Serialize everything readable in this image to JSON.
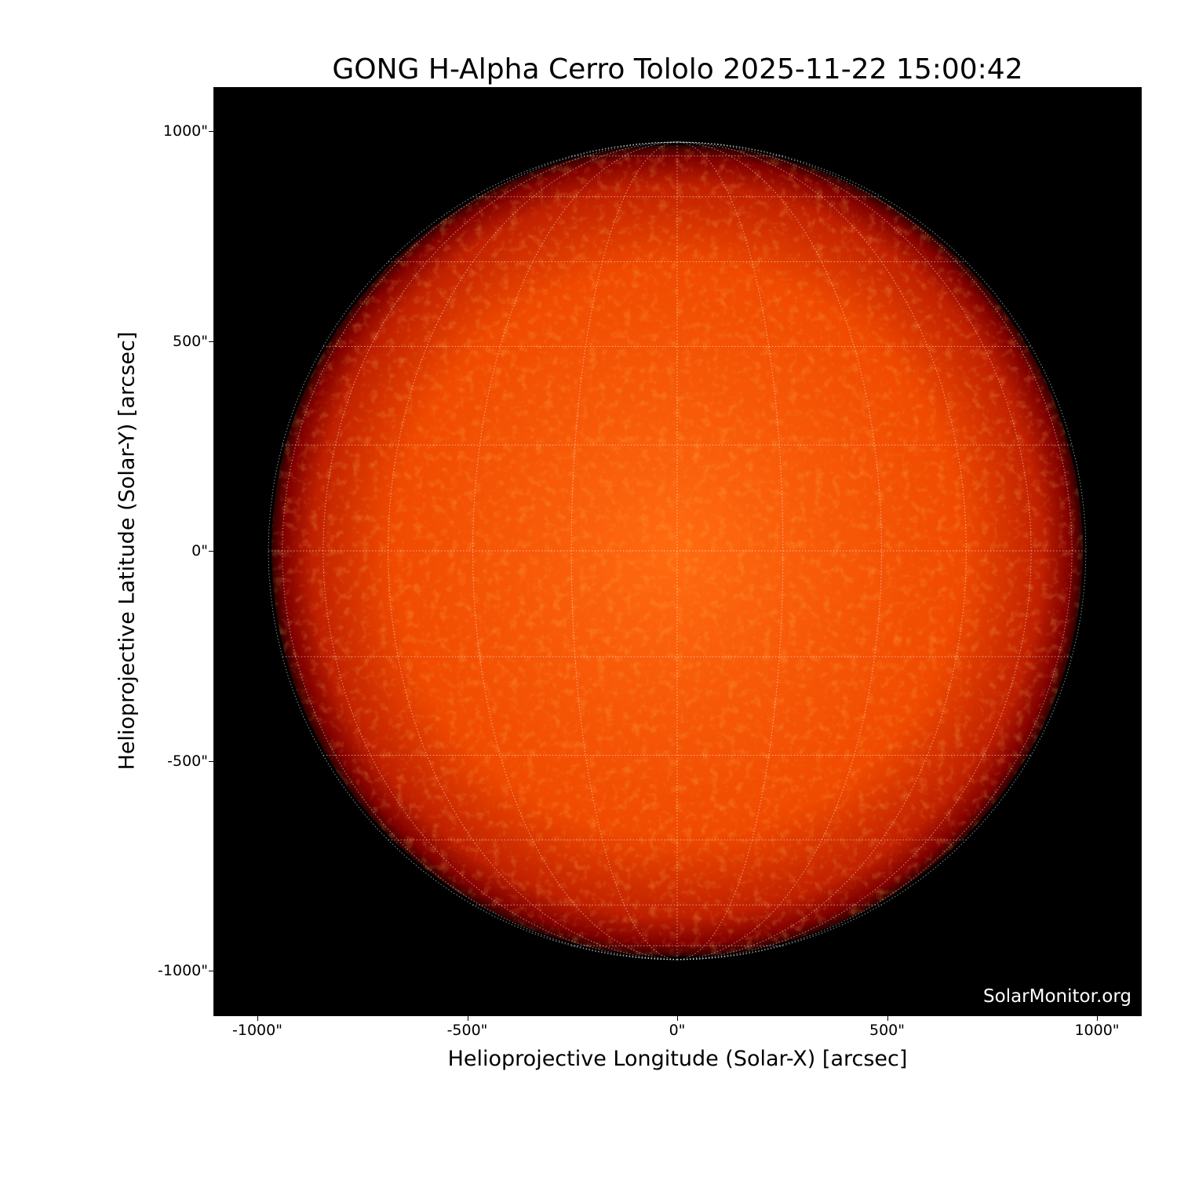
{
  "title": "GONG H-Alpha Cerro Tololo 2025-11-22 15:00:42",
  "xlabel": "Helioprojective Longitude (Solar-X) [arcsec]",
  "ylabel": "Helioprojective Latitude (Solar-Y) [arcsec]",
  "x_ticks": [
    "-1000\"",
    "-500\"",
    "0\"",
    "500\"",
    "1000\""
  ],
  "y_ticks": [
    "1000\"",
    "500\"",
    "0\"",
    "-500\"",
    "-1000\""
  ],
  "x_tick_values": [
    -1000,
    -500,
    0,
    500,
    1000
  ],
  "y_tick_values": [
    1000,
    500,
    0,
    -500,
    -1000
  ],
  "axis_range_arcsec": [
    -1105,
    1105
  ],
  "solar_radius_arcsec": 975,
  "grid_spacing_deg": 15,
  "watermark": "SolarMonitor.org",
  "colors": {
    "disk_center": "#ff6a10",
    "disk_limb": "#7a0000",
    "background": "#000000",
    "grid": "#ffffff"
  }
}
